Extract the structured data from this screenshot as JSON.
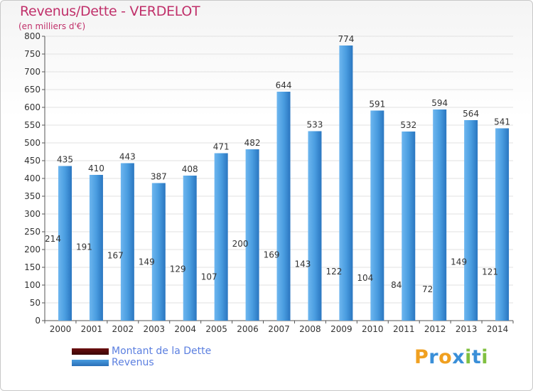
{
  "title": "Revenus/Dette - VERDELOT",
  "subtitle": "(en milliers d'€)",
  "colors": {
    "debt": "#6b0f10",
    "revenue": "#4a9de0",
    "title": "#c0306a",
    "legend_text": "#5b7fe0"
  },
  "legend": {
    "debt_label": "Montant de la Dette",
    "revenue_label": "Revenus"
  },
  "logo": {
    "letters": [
      "P",
      "r",
      "o",
      "x",
      "i",
      "t",
      "i"
    ],
    "colors": [
      "#f0a020",
      "#3a8fd8",
      "#f0a020",
      "#3a8fd8",
      "#80c040",
      "#3a8fd8",
      "#80c040"
    ]
  },
  "chart_data": {
    "type": "bar",
    "title": "Revenus/Dette - VERDELOT",
    "ylabel": "(en milliers d'€)",
    "xlabel": "",
    "ylim": [
      0,
      800
    ],
    "ytick_step": 50,
    "grid": true,
    "categories": [
      "2000",
      "2001",
      "2002",
      "2003",
      "2004",
      "2005",
      "2006",
      "2007",
      "2008",
      "2009",
      "2010",
      "2011",
      "2012",
      "2013",
      "2014"
    ],
    "series": [
      {
        "name": "Montant de la Dette",
        "values": [
          214,
          191,
          167,
          149,
          129,
          107,
          200,
          169,
          143,
          122,
          104,
          84,
          72,
          149,
          121
        ]
      },
      {
        "name": "Revenus",
        "values": [
          435,
          410,
          443,
          387,
          408,
          471,
          482,
          644,
          533,
          774,
          591,
          532,
          594,
          564,
          541
        ]
      }
    ]
  }
}
